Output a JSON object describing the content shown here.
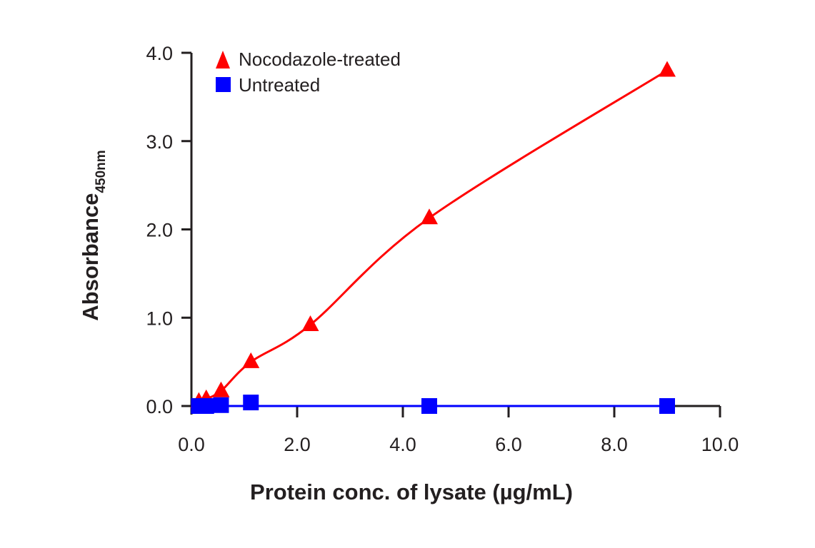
{
  "chart_data": {
    "type": "scatter",
    "title": "",
    "xlabel": "Protein conc. of lysate (µg/mL)",
    "ylabel": "Absorbance",
    "ylabel_subscript": "450nm",
    "xlim": [
      0,
      10
    ],
    "ylim": [
      0,
      4
    ],
    "x_ticks": [
      0,
      2,
      4,
      6,
      8,
      10
    ],
    "x_tick_labels": [
      "0.0",
      "2.0",
      "4.0",
      "6.0",
      "8.0",
      "10.0"
    ],
    "y_ticks": [
      0,
      1,
      2,
      3,
      4
    ],
    "y_tick_labels": [
      "0.0",
      "1.0",
      "2.0",
      "3.0",
      "4.0"
    ],
    "grid": false,
    "legend_position": "top-left",
    "series": [
      {
        "name": "Nocodazole-treated",
        "marker": "triangle",
        "color": "#ff0000",
        "fit_line": true,
        "x": [
          0.14,
          0.28,
          0.56,
          1.125,
          2.25,
          4.5,
          9.0
        ],
        "y": [
          0.05,
          0.08,
          0.17,
          0.5,
          0.92,
          2.13,
          3.8
        ]
      },
      {
        "name": "Untreated",
        "marker": "square",
        "color": "#0000ff",
        "fit_line": true,
        "x": [
          0.14,
          0.28,
          0.56,
          1.125,
          4.5,
          9.0
        ],
        "y": [
          0.0,
          0.0,
          0.01,
          0.04,
          0.0,
          0.0
        ]
      }
    ]
  }
}
